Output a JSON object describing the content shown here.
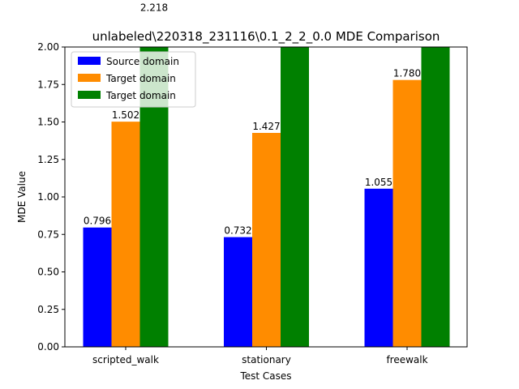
{
  "chart_data": {
    "type": "bar",
    "title": "unlabeled\\220318_231116\\0.1_2_2_0.0 MDE Comparison",
    "xlabel": "Test Cases",
    "ylabel": "MDE Value",
    "categories": [
      "scripted_walk",
      "stationary",
      "freewalk"
    ],
    "ylim": [
      0,
      2.0
    ],
    "yticks": [
      "0.00",
      "0.25",
      "0.50",
      "0.75",
      "1.00",
      "1.25",
      "1.50",
      "1.75",
      "2.00"
    ],
    "grid": false,
    "legend_position": "top-left",
    "series": [
      {
        "name": "Source domain",
        "color": "#0000ff",
        "values": [
          0.796,
          0.732,
          1.055
        ],
        "labels": [
          "0.796",
          "0.732",
          "1.055"
        ]
      },
      {
        "name": "Target domain",
        "color": "#ff8c00",
        "values": [
          1.502,
          1.427,
          1.78
        ],
        "labels": [
          "1.502",
          "1.427",
          "1.780"
        ]
      },
      {
        "name": "Target domain",
        "color": "#008000",
        "values": [
          2.218,
          2.218,
          2.218
        ],
        "labels": [
          "2.218",
          "",
          ""
        ]
      }
    ]
  }
}
